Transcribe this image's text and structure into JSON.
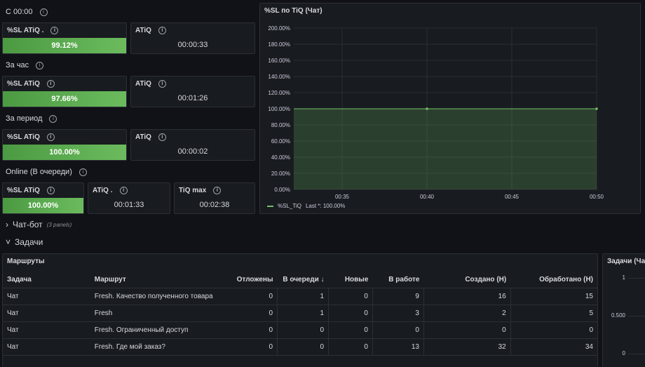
{
  "sections": {
    "c0000": "С 00:00",
    "hour": "За час",
    "period": "За период",
    "online": "Online (В очереди)"
  },
  "c0000": {
    "sl_title": "%SL ATiQ .",
    "sl_value": "99.12%",
    "sl_fill": 1.0,
    "atiq_title": "ATiQ",
    "atiq_value": "00:00:33"
  },
  "hour": {
    "sl_title": "%SL ATiQ",
    "sl_value": "97.66%",
    "sl_fill": 1.0,
    "atiq_title": "ATiQ",
    "atiq_value": "00:01:26"
  },
  "period": {
    "sl_title": "%SL ATiQ",
    "sl_value": "100.00%",
    "sl_fill": 1.0,
    "atiq_title": "ATiQ",
    "atiq_value": "00:00:02"
  },
  "online": {
    "sl_title": "%SL ATiQ",
    "sl_value": "100.00%",
    "sl_fill": 1.0,
    "atiq_title": "ATiQ .",
    "atiq_value": "00:01:33",
    "tiq_title": "TiQ max",
    "tiq_value": "00:02:38"
  },
  "chart_panel": {
    "title": "%SL по TiQ (Чат)",
    "legend_name": "%SL_TiQ",
    "legend_stat": "Last *: 100.00%"
  },
  "colors": {
    "accent_green": "#73bf69",
    "gauge_green": "#56a64b",
    "background": "#111217",
    "panel": "#181b1f"
  },
  "chart_data": {
    "type": "area",
    "title": "%SL по TiQ (Чат)",
    "y_ticks": [
      "200.00%",
      "180.00%",
      "160.00%",
      "140.00%",
      "120.00%",
      "100.00%",
      "80.00%",
      "60.00%",
      "40.00%",
      "20.00%",
      "0.00%"
    ],
    "ylim": [
      0,
      200
    ],
    "x_ticks": [
      "00:35",
      "00:40",
      "00:45",
      "00:50"
    ],
    "series": [
      {
        "name": "%SL_TiQ",
        "x": [
          "00:40",
          "00:50"
        ],
        "values": [
          100,
          100
        ]
      }
    ],
    "grid": true,
    "legend": "bottom-left"
  },
  "rows": {
    "chatbot": {
      "label": "Чат-бот",
      "meta": "(3 panels)",
      "chevron": "›"
    },
    "tasks": {
      "label": "Задачи",
      "chevron": "˅"
    }
  },
  "routes": {
    "title": "Маршруты",
    "columns": [
      "Задача",
      "Маршрут",
      "Отложены",
      "В очереди",
      "Новые",
      "В работе",
      "Создано (Н)",
      "Обработано (Н)"
    ],
    "sort_arrow": "↓",
    "rows": [
      [
        "Чат",
        "Fresh. Качество полученного товара",
        "0",
        "1",
        "0",
        "9",
        "16",
        "15"
      ],
      [
        "Чат",
        "Fresh",
        "0",
        "1",
        "0",
        "3",
        "2",
        "5"
      ],
      [
        "Чат",
        "Fresh. Ограниченный доступ",
        "0",
        "0",
        "0",
        "0",
        "0",
        "0"
      ],
      [
        "Чат",
        "Fresh. Где мой заказ?",
        "0",
        "0",
        "0",
        "13",
        "32",
        "34"
      ]
    ]
  },
  "tasks_panel": {
    "title": "Задачи (Чат",
    "y_ticks": [
      "1",
      "0.500",
      "0"
    ]
  }
}
